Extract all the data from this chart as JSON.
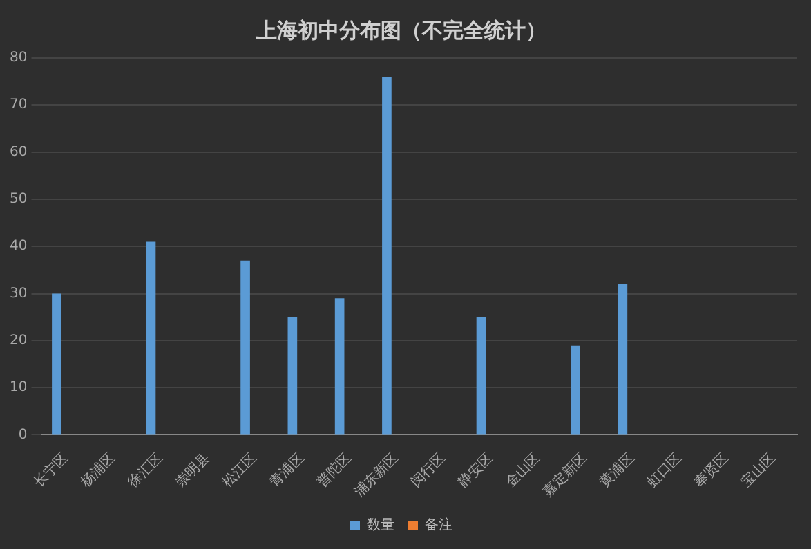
{
  "chart_data": {
    "type": "bar",
    "title": "上海初中分布图（不完全统计）",
    "categories": [
      "长宁区",
      "杨浦区",
      "徐汇区",
      "崇明县",
      "松江区",
      "青浦区",
      "普陀区",
      "浦东新区",
      "闵行区",
      "静安区",
      "金山区",
      "嘉定新区",
      "黄浦区",
      "虹口区",
      "奉贤区",
      "宝山区"
    ],
    "series": [
      {
        "name": "数量",
        "color": "#5b9bd5",
        "values": [
          30,
          null,
          41,
          null,
          37,
          25,
          29,
          76,
          null,
          25,
          null,
          19,
          32,
          null,
          null,
          null
        ]
      },
      {
        "name": "备注",
        "color": "#ed7d31",
        "values": [
          null,
          null,
          null,
          null,
          null,
          null,
          null,
          null,
          null,
          null,
          null,
          null,
          null,
          null,
          null,
          null
        ]
      }
    ],
    "ylim": [
      0,
      80
    ],
    "yticks": [
      0,
      10,
      20,
      30,
      40,
      50,
      60,
      70,
      80
    ],
    "grid": "y",
    "legend": "bottom"
  }
}
